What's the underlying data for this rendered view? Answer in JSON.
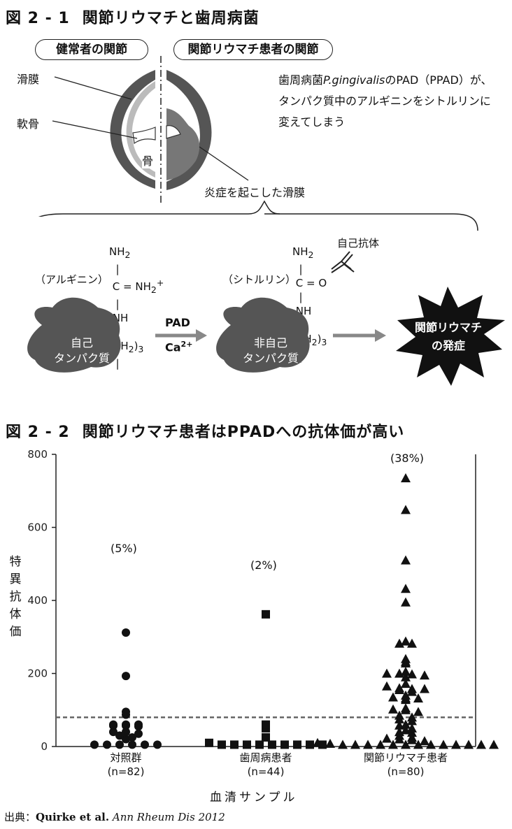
{
  "figure1": {
    "number": "図 2 - 1",
    "title": "関節リウマチと歯周病菌",
    "label_normal": "健常者の関節",
    "label_ra": "関節リウマチ患者の関節",
    "synovium": "滑膜",
    "cartilage": "軟骨",
    "bone": "骨",
    "inflamed": "炎症を起こした滑膜",
    "desc_prefix": "歯周病菌",
    "desc_species": "P.gingivalis",
    "desc_rest1": "のPAD（PPAD）が、",
    "desc_line2": "タンパク質中のアルギニンをシトルリンに",
    "desc_line3": "変えてしまう",
    "arginine_name": "（アルギニン）",
    "citrulline_name": "（シトルリン）",
    "autoantibody": "自己抗体",
    "self_protein_1": "自己",
    "self_protein_2": "タンパク質",
    "nonself_protein_1": "非自己",
    "nonself_protein_2": "タンパク質",
    "enzyme": "PAD",
    "cofactor": "Ca",
    "cofactor_sup": "2+",
    "outcome_1": "関節リウマチ",
    "outcome_2": "の発症"
  },
  "figure2": {
    "number": "図 2 - 2",
    "title": "関節リウマチ患者はPPADへの抗体価が高い",
    "ylabel": "特異抗体価",
    "xlabel": "血清サンプル",
    "source_prefix": "出典：",
    "source_authors": "Quirke et al.",
    "source_journal": "Ann Rheum Dis 2012"
  },
  "chart_data": {
    "type": "scatter",
    "ylim": [
      0,
      800
    ],
    "yticks": [
      "0",
      "200",
      "400",
      "600",
      "800"
    ],
    "threshold": 80,
    "categories": [
      {
        "label": "対照群",
        "n": "(n=82)",
        "percent": "(5%)",
        "marker": "circle",
        "values": [
          312,
          193,
          95,
          87,
          60,
          60,
          60,
          57,
          57,
          55,
          40,
          40,
          35,
          30,
          25,
          20,
          5,
          5,
          5,
          5,
          5,
          5
        ]
      },
      {
        "label": "歯周病患者",
        "n": "(n=44)",
        "percent": "(2%)",
        "marker": "square",
        "values": [
          362,
          60,
          50,
          25,
          10,
          5,
          5,
          5,
          5,
          5,
          5,
          5,
          5,
          5
        ]
      },
      {
        "label": "関節リウマチ患者",
        "n": "(n=80)",
        "percent": "(38%)",
        "marker": "triangle",
        "values": [
          735,
          648,
          510,
          432,
          395,
          288,
          282,
          282,
          240,
          232,
          228,
          205,
          200,
          200,
          198,
          195,
          190,
          172,
          165,
          160,
          158,
          158,
          155,
          150,
          140,
          135,
          132,
          132,
          128,
          105,
          102,
          100,
          95,
          85,
          80,
          75,
          70,
          60,
          58,
          50,
          45,
          40,
          38,
          30,
          25,
          22,
          20,
          18,
          15,
          10,
          8,
          5,
          5,
          5,
          5,
          5,
          5,
          5,
          5,
          5,
          5,
          5,
          5,
          5
        ]
      }
    ]
  }
}
